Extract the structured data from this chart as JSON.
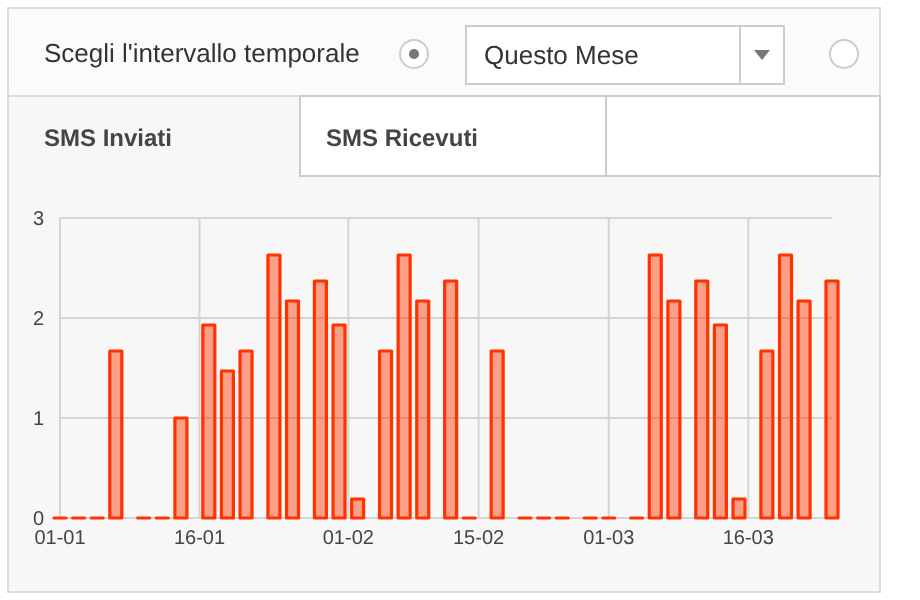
{
  "chart_data": {
    "type": "bar",
    "title": "SMS Inviati",
    "annotations": [
      "Scegli l'intervallo temporale",
      "Questo Mese",
      "SMS Ricevuti"
    ],
    "x": [
      "--01-01",
      "--01-03",
      "--01-05",
      "--01-07",
      "--01-10",
      "--01-12",
      "--01-14",
      "--01-17",
      "--01-19",
      "--01-21",
      "--01-24",
      "--01-26",
      "--01-29",
      "--01-31",
      "--02-02",
      "--02-05",
      "--02-07",
      "--02-09",
      "--02-12",
      "--02-14",
      "--02-17",
      "--02-20",
      "--02-22",
      "--02-24",
      "--02-27",
      "--03-01",
      "--03-04",
      "--03-06",
      "--03-08",
      "--03-11",
      "--03-13",
      "--03-15",
      "--03-18",
      "--03-20",
      "--03-22",
      "--03-25"
    ],
    "values": [
      0,
      0,
      0,
      1.67,
      0,
      0,
      1.0,
      1.93,
      1.47,
      1.67,
      2.63,
      2.17,
      2.37,
      1.93,
      0.19,
      1.67,
      2.63,
      2.17,
      2.37,
      0,
      1.67,
      0,
      0,
      0,
      0,
      0,
      0,
      2.63,
      2.17,
      2.37,
      1.93,
      0.19,
      1.67,
      2.63,
      2.17,
      2.37
    ],
    "color": "#ff3300",
    "xlim": [
      "--01-01",
      "--03-25"
    ],
    "xticks": [
      {
        "value": "--01-01",
        "label": "01-01"
      },
      {
        "value": "--01-16",
        "label": "16-01"
      },
      {
        "value": "--02-01",
        "label": "01-02"
      },
      {
        "value": "--02-15",
        "label": "15-02"
      },
      {
        "value": "--03-01",
        "label": "01-03"
      },
      {
        "value": "--03-16",
        "label": "16-03"
      }
    ],
    "ylim": [
      0,
      3
    ],
    "yticks": [
      0,
      1,
      2,
      3
    ],
    "grid": true
  }
}
